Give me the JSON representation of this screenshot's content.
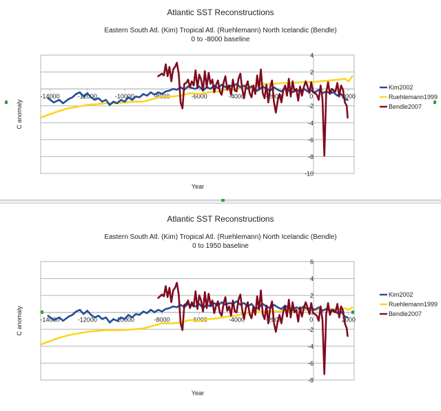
{
  "chart_data": [
    {
      "type": "line",
      "title": "Atlantic SST Reconstructions",
      "subtitle": "Eastern South Atl. (Kim) Tropical Atl. (Ruehlemann) North Icelandic (Bendle)",
      "subtitle2": "0 to -8000 baseline",
      "xlabel": "Year",
      "ylabel": "C anomaly",
      "xlim": [
        -14500,
        2300
      ],
      "ylim": [
        -10,
        4
      ],
      "xticks": [
        -14000,
        -12000,
        -10000,
        -8000,
        -6000,
        -4000,
        -2000,
        0,
        2000
      ],
      "yticks": [
        4,
        2,
        0,
        -2,
        -4,
        -6,
        -8,
        -10
      ],
      "grid": "horizontal",
      "legend": "right",
      "series": [
        {
          "name": "Kim2002",
          "color": "#1f4e96",
          "x": [
            -14100,
            -13800,
            -13500,
            -13300,
            -13000,
            -12800,
            -12600,
            -12400,
            -12200,
            -12000,
            -11800,
            -11600,
            -11400,
            -11200,
            -11000,
            -10800,
            -10600,
            -10400,
            -10200,
            -10000,
            -9800,
            -9600,
            -9400,
            -9200,
            -9000,
            -8800,
            -8600,
            -8400,
            -8200,
            -8000,
            -7800,
            -7600,
            -7400,
            -7200,
            -7000,
            -6800,
            -6600,
            -6400,
            -6200,
            -6000,
            -5800,
            -5600,
            -5400,
            -5200,
            -5000,
            -4800,
            -4600,
            -4400,
            -4200,
            -4000,
            -3800,
            -3600,
            -3400,
            -3200,
            -3000,
            -2800,
            -2600,
            -2400,
            -2200,
            -2000,
            -1800,
            -1600,
            -1400,
            -1200,
            -1000,
            -800,
            -600,
            -400,
            -200,
            0,
            200,
            400,
            600,
            800,
            1000,
            1200,
            1400,
            1600,
            1800,
            1950
          ],
          "y": [
            -1.1,
            -1.6,
            -1.3,
            -1.7,
            -1.2,
            -1.0,
            -0.6,
            -0.4,
            -0.9,
            -0.5,
            -1.0,
            -1.3,
            -1.1,
            -1.5,
            -1.3,
            -1.9,
            -1.5,
            -1.7,
            -1.3,
            -1.5,
            -1.0,
            -1.3,
            -0.9,
            -1.0,
            -0.6,
            -0.8,
            -0.4,
            -0.7,
            -0.4,
            -0.6,
            -0.3,
            -0.2,
            0.0,
            -0.1,
            0.2,
            -0.1,
            0.3,
            0.1,
            0.0,
            0.3,
            -0.2,
            0.2,
            0.0,
            0.4,
            0.1,
            0.5,
            0.2,
            0.4,
            0.3,
            0.6,
            0.2,
            0.4,
            0.0,
            0.3,
            -0.3,
            -0.1,
            0.3,
            0.0,
            -0.2,
            0.2,
            -0.1,
            -0.3,
            0.1,
            -0.2,
            -0.4,
            -0.1,
            -0.3,
            0.0,
            -0.3,
            -0.2,
            -0.4,
            -0.1,
            -0.5,
            -0.3,
            -0.5,
            -0.4,
            -0.8,
            -0.6,
            -1.2,
            -1.3
          ]
        },
        {
          "name": "Ruehlemann1999",
          "color": "#ffd320",
          "x": [
            -14500,
            -14000,
            -13500,
            -13000,
            -12500,
            -12000,
            -11500,
            -11000,
            -10500,
            -10000,
            -9500,
            -9000,
            -8500,
            -8000,
            -7500,
            -7000,
            -6500,
            -6000,
            -5500,
            -5000,
            -4500,
            -4000,
            -3500,
            -3000,
            -2500,
            -2000,
            -1500,
            -1000,
            -500,
            0,
            500,
            1000,
            1500,
            1800,
            2000,
            2200
          ],
          "y": [
            -3.4,
            -3.0,
            -2.6,
            -2.3,
            -2.1,
            -1.9,
            -1.8,
            -1.7,
            -1.7,
            -1.6,
            -1.5,
            -1.5,
            -1.2,
            -0.9,
            -0.9,
            -0.8,
            -0.5,
            -0.6,
            -0.4,
            -0.3,
            -0.1,
            0.0,
            0.3,
            0.4,
            0.6,
            0.6,
            0.7,
            0.7,
            0.8,
            0.8,
            0.9,
            1.0,
            1.1,
            1.2,
            0.9,
            1.5
          ]
        },
        {
          "name": "Bendle2007",
          "color": "#7f0b1e",
          "x": [
            -8200,
            -8000,
            -7900,
            -7800,
            -7700,
            -7600,
            -7500,
            -7400,
            -7300,
            -7200,
            -7100,
            -7000,
            -6900,
            -6800,
            -6700,
            -6600,
            -6500,
            -6400,
            -6300,
            -6200,
            -6100,
            -6000,
            -5900,
            -5800,
            -5700,
            -5600,
            -5500,
            -5400,
            -5300,
            -5200,
            -5100,
            -5000,
            -4900,
            -4800,
            -4700,
            -4600,
            -4500,
            -4400,
            -4300,
            -4200,
            -4100,
            -4000,
            -3900,
            -3800,
            -3700,
            -3600,
            -3500,
            -3400,
            -3300,
            -3200,
            -3100,
            -3000,
            -2900,
            -2800,
            -2700,
            -2600,
            -2500,
            -2400,
            -2300,
            -2200,
            -2100,
            -2000,
            -1900,
            -1800,
            -1700,
            -1600,
            -1500,
            -1400,
            -1300,
            -1200,
            -1100,
            -1000,
            -900,
            -800,
            -700,
            -600,
            -500,
            -400,
            -300,
            -200,
            -100,
            0,
            100,
            200,
            300,
            400,
            500,
            600,
            700,
            800,
            900,
            1000,
            1100,
            1200,
            1300,
            1400,
            1500,
            1600,
            1700,
            1800,
            1900,
            1950
          ],
          "y": [
            1.5,
            1.8,
            1.6,
            2.9,
            1.5,
            2.6,
            0.9,
            2.3,
            2.6,
            3.1,
            1.8,
            -1.6,
            -2.3,
            0.6,
            0.7,
            1.1,
            0.2,
            0.9,
            0.4,
            2.2,
            0.1,
            1.7,
            1.1,
            -0.2,
            2.1,
            0.2,
            1.9,
            0.6,
            1.1,
            -0.4,
            0.5,
            1.0,
            -0.3,
            -0.7,
            0.7,
            1.5,
            -0.1,
            0.4,
            -0.7,
            1.1,
            -0.2,
            -0.3,
            1.2,
            1.8,
            0.0,
            -1.1,
            0.3,
            0.9,
            -0.5,
            -1.0,
            0.4,
            -0.6,
            1.6,
            0.0,
            2.3,
            -0.5,
            -1.1,
            0.5,
            -1.6,
            0.2,
            1.0,
            -1.5,
            -2.8,
            -1.4,
            -0.6,
            -1.6,
            -0.2,
            0.4,
            -0.8,
            1.2,
            -0.9,
            0.9,
            -0.3,
            0.0,
            -1.4,
            0.3,
            -0.8,
            0.2,
            0.9,
            0.3,
            -0.5,
            0.8,
            -0.4,
            -0.5,
            -0.7,
            -1.3,
            0.4,
            -1.2,
            -7.9,
            -0.5,
            0.8,
            -0.6,
            0.0,
            -0.2,
            -0.3,
            0.7,
            -0.9,
            0.4,
            -0.1,
            -1.6,
            -2.0,
            -3.4
          ]
        }
      ]
    },
    {
      "type": "line",
      "title": "Atlantic SST Reconstructions",
      "subtitle": "Eastern South Atl. (Kim) Tropical Atl. (Ruehlemann) North Icelandic (Bendle)",
      "subtitle2": "0 to 1950 baseline",
      "xlabel": "Year",
      "ylabel": "C anomaly",
      "xlim": [
        -14500,
        2300
      ],
      "ylim": [
        -8,
        6
      ],
      "xticks": [
        -14000,
        -12000,
        -10000,
        -8000,
        -6000,
        -4000,
        -2000,
        0,
        2000
      ],
      "yticks": [
        6,
        4,
        2,
        0,
        -2,
        -4,
        -6,
        -8
      ],
      "grid": "horizontal",
      "legend": "right",
      "series": [
        {
          "name": "Kim2002",
          "color": "#1f4e96",
          "x": [
            -14100,
            -13800,
            -13500,
            -13300,
            -13000,
            -12800,
            -12600,
            -12400,
            -12200,
            -12000,
            -11800,
            -11600,
            -11400,
            -11200,
            -11000,
            -10800,
            -10600,
            -10400,
            -10200,
            -10000,
            -9800,
            -9600,
            -9400,
            -9200,
            -9000,
            -8800,
            -8600,
            -8400,
            -8200,
            -8000,
            -7800,
            -7600,
            -7400,
            -7200,
            -7000,
            -6800,
            -6600,
            -6400,
            -6200,
            -6000,
            -5800,
            -5600,
            -5400,
            -5200,
            -5000,
            -4800,
            -4600,
            -4400,
            -4200,
            -4000,
            -3800,
            -3600,
            -3400,
            -3200,
            -3000,
            -2800,
            -2600,
            -2400,
            -2200,
            -2000,
            -1800,
            -1600,
            -1400,
            -1200,
            -1000,
            -800,
            -600,
            -400,
            -200,
            0,
            200,
            400,
            600,
            800,
            1000,
            1200,
            1400,
            1600,
            1800,
            1950
          ],
          "y": [
            -0.4,
            -0.9,
            -0.6,
            -1.0,
            -0.5,
            -0.3,
            0.1,
            0.3,
            -0.2,
            0.2,
            -0.3,
            -0.6,
            -0.4,
            -0.8,
            -0.6,
            -1.2,
            -0.8,
            -1.0,
            -0.6,
            -0.8,
            -0.3,
            -0.6,
            -0.2,
            -0.3,
            0.1,
            -0.1,
            0.3,
            0.0,
            0.3,
            0.1,
            0.4,
            0.5,
            0.7,
            0.6,
            0.9,
            0.6,
            1.0,
            0.8,
            0.7,
            1.0,
            0.5,
            0.9,
            0.7,
            1.1,
            0.8,
            1.2,
            0.9,
            1.1,
            1.0,
            1.3,
            0.9,
            1.1,
            0.7,
            1.0,
            0.4,
            0.6,
            1.0,
            0.7,
            0.5,
            0.9,
            0.6,
            0.4,
            0.8,
            0.5,
            0.3,
            0.6,
            0.4,
            0.7,
            0.4,
            0.5,
            0.3,
            0.6,
            0.2,
            0.4,
            0.2,
            0.3,
            -0.1,
            0.1,
            -0.5,
            -0.6
          ]
        },
        {
          "name": "Ruehlemann1999",
          "color": "#ffd320",
          "x": [
            -14500,
            -14000,
            -13500,
            -13000,
            -12500,
            -12000,
            -11500,
            -11000,
            -10500,
            -10000,
            -9500,
            -9000,
            -8500,
            -8000,
            -7500,
            -7000,
            -6500,
            -6000,
            -5500,
            -5000,
            -4500,
            -4000,
            -3500,
            -3000,
            -2500,
            -2000,
            -1500,
            -1000,
            -500,
            0,
            500,
            1000,
            1500,
            1800,
            2000,
            2200
          ],
          "y": [
            -3.8,
            -3.4,
            -3.0,
            -2.7,
            -2.5,
            -2.3,
            -2.2,
            -2.1,
            -2.1,
            -2.1,
            -2.0,
            -1.9,
            -1.6,
            -1.3,
            -1.3,
            -1.2,
            -0.9,
            -1.0,
            -0.8,
            -0.7,
            -0.5,
            -0.4,
            -0.1,
            0.0,
            0.1,
            0.1,
            0.2,
            0.2,
            0.3,
            0.3,
            0.3,
            0.4,
            0.4,
            0.5,
            0.3,
            0.6
          ]
        },
        {
          "name": "Bendle2007",
          "color": "#7f0b1e",
          "x": [
            -8200,
            -8000,
            -7900,
            -7800,
            -7700,
            -7600,
            -7500,
            -7400,
            -7300,
            -7200,
            -7100,
            -7000,
            -6900,
            -6800,
            -6700,
            -6600,
            -6500,
            -6400,
            -6300,
            -6200,
            -6100,
            -6000,
            -5900,
            -5800,
            -5700,
            -5600,
            -5500,
            -5400,
            -5300,
            -5200,
            -5100,
            -5000,
            -4900,
            -4800,
            -4700,
            -4600,
            -4500,
            -4400,
            -4300,
            -4200,
            -4100,
            -4000,
            -3900,
            -3800,
            -3700,
            -3600,
            -3500,
            -3400,
            -3300,
            -3200,
            -3100,
            -3000,
            -2900,
            -2800,
            -2700,
            -2600,
            -2500,
            -2400,
            -2300,
            -2200,
            -2100,
            -2000,
            -1900,
            -1800,
            -1700,
            -1600,
            -1500,
            -1400,
            -1300,
            -1200,
            -1100,
            -1000,
            -900,
            -800,
            -700,
            -600,
            -500,
            -400,
            -300,
            -200,
            -100,
            0,
            100,
            200,
            300,
            400,
            500,
            600,
            700,
            800,
            900,
            1000,
            1100,
            1200,
            1300,
            1400,
            1500,
            1600,
            1700,
            1800,
            1900,
            1950
          ],
          "y": [
            1.7,
            2.1,
            1.9,
            3.1,
            1.8,
            2.9,
            1.2,
            2.6,
            2.9,
            3.5,
            2.1,
            -1.3,
            -2.1,
            0.9,
            1.0,
            1.4,
            0.5,
            1.2,
            0.7,
            2.5,
            0.4,
            2.0,
            1.4,
            0.1,
            2.4,
            0.5,
            2.2,
            0.9,
            1.4,
            -0.1,
            0.8,
            1.3,
            0.0,
            -0.4,
            1.0,
            1.8,
            0.2,
            0.7,
            -0.4,
            1.4,
            0.1,
            0.0,
            1.5,
            2.1,
            0.3,
            -0.8,
            0.6,
            1.2,
            -0.2,
            -0.7,
            0.7,
            -0.3,
            1.9,
            0.3,
            2.6,
            -0.2,
            -0.8,
            0.8,
            -1.3,
            0.5,
            1.3,
            -1.2,
            -2.3,
            -1.1,
            -0.3,
            -1.3,
            0.1,
            0.7,
            -0.5,
            1.5,
            -0.6,
            1.2,
            0.0,
            0.3,
            -1.1,
            0.6,
            -0.5,
            0.5,
            1.2,
            0.6,
            -0.2,
            1.1,
            -0.1,
            -0.2,
            -0.4,
            -1.0,
            0.7,
            -0.9,
            -7.3,
            -0.2,
            1.1,
            -0.3,
            0.3,
            0.1,
            0.0,
            1.0,
            -0.6,
            0.7,
            0.2,
            -1.3,
            -1.9,
            -2.8
          ]
        }
      ]
    }
  ]
}
